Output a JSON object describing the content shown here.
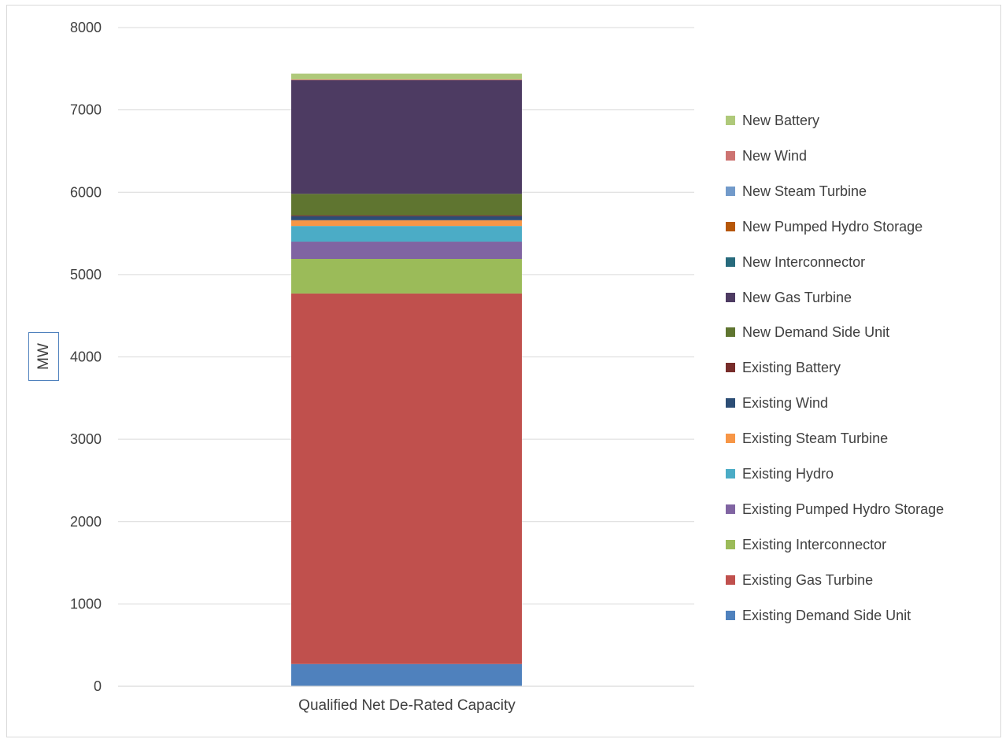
{
  "chart_data": {
    "type": "bar",
    "stacked": true,
    "categories": [
      "Qualified Net De-Rated Capacity"
    ],
    "ylabel": "MW",
    "ylim": [
      0,
      8000
    ],
    "yticks": [
      0,
      1000,
      2000,
      3000,
      4000,
      5000,
      6000,
      7000,
      8000
    ],
    "grid": true,
    "legend_position": "right",
    "series": [
      {
        "name": "Existing Demand Side Unit",
        "color": "#4f81bd",
        "values": [
          270
        ]
      },
      {
        "name": "Existing Gas Turbine",
        "color": "#c0504d",
        "values": [
          4500
        ]
      },
      {
        "name": "Existing Interconnector",
        "color": "#9bbb59",
        "values": [
          420
        ]
      },
      {
        "name": "Existing Pumped Hydro Storage",
        "color": "#8064a2",
        "values": [
          210
        ]
      },
      {
        "name": "Existing Hydro",
        "color": "#4bacc6",
        "values": [
          190
        ]
      },
      {
        "name": "Existing Steam Turbine",
        "color": "#f79646",
        "values": [
          70
        ]
      },
      {
        "name": "Existing Wind",
        "color": "#2c4d75",
        "values": [
          50
        ]
      },
      {
        "name": "Existing Battery",
        "color": "#772c2a",
        "values": [
          10
        ]
      },
      {
        "name": "New Demand Side Unit",
        "color": "#5f7530",
        "values": [
          260
        ]
      },
      {
        "name": "New Gas Turbine",
        "color": "#4d3b62",
        "values": [
          1380
        ]
      },
      {
        "name": "New Interconnector",
        "color": "#276a7c",
        "values": [
          0
        ]
      },
      {
        "name": "New Pumped Hydro Storage",
        "color": "#b65708",
        "values": [
          0
        ]
      },
      {
        "name": "New Steam Turbine",
        "color": "#729aca",
        "values": [
          0
        ]
      },
      {
        "name": "New Wind",
        "color": "#cd7371",
        "values": [
          10
        ]
      },
      {
        "name": "New Battery",
        "color": "#afc97a",
        "values": [
          70
        ]
      }
    ]
  }
}
